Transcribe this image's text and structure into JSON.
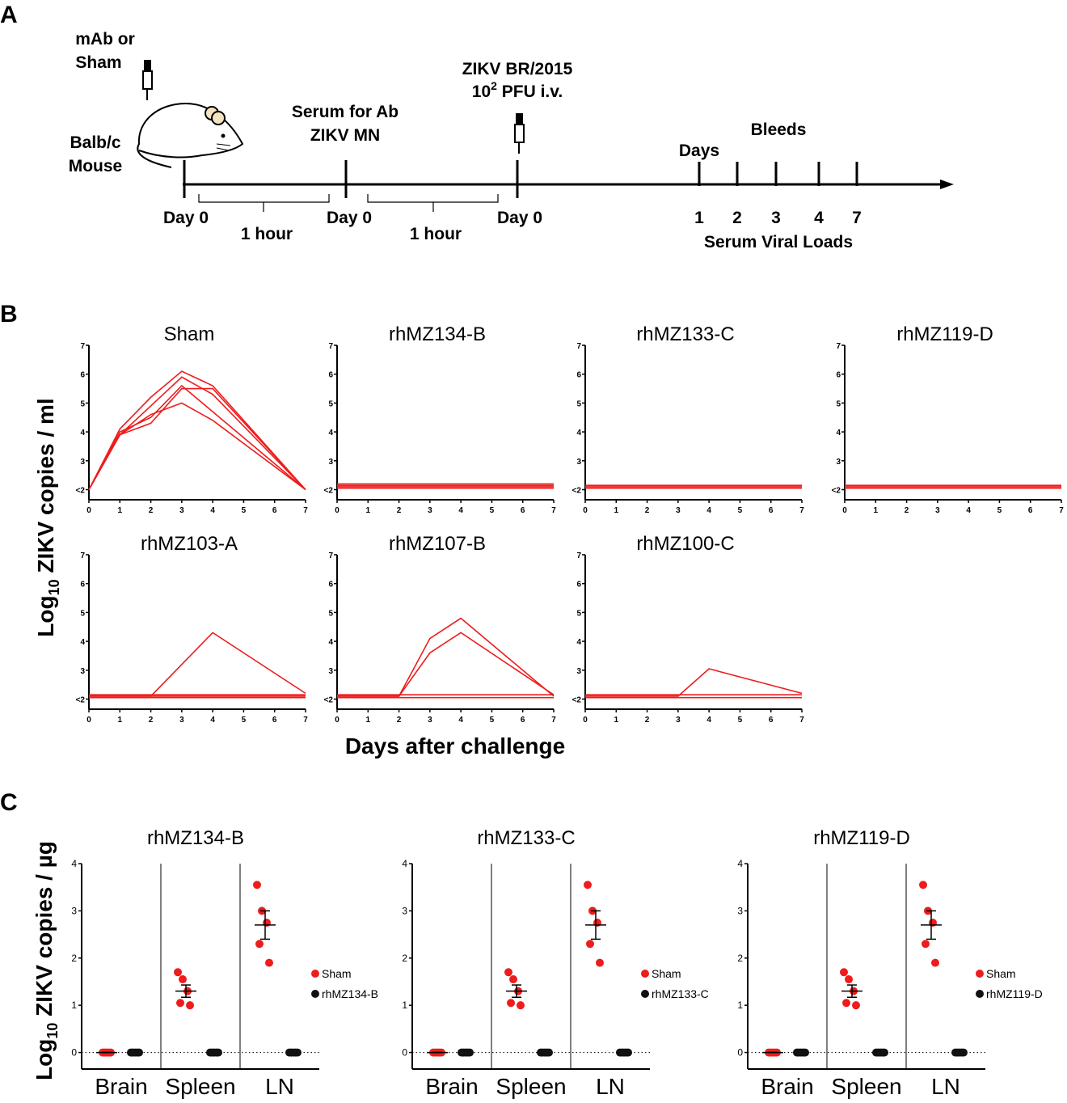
{
  "panel_labels": [
    "A",
    "B",
    "C"
  ],
  "timeline": {
    "mab": "mAb or",
    "sham": "Sham",
    "mouse1": "Balb/c",
    "mouse2": "Mouse",
    "serum1": "Serum for Ab",
    "serum2": "ZIKV MN",
    "zikv": "ZIKV BR/2015",
    "dose_base": "10",
    "dose_sup": "2",
    "dose_rest": " PFU i.v.",
    "days": "Days",
    "bleeds": "Bleeds",
    "day0": [
      "Day 0",
      "Day 0",
      "Day 0"
    ],
    "hours": [
      "1 hour",
      "1 hour"
    ],
    "bleed_days": [
      1,
      2,
      3,
      4,
      7
    ],
    "viral": "Serum Viral Loads"
  },
  "panel_b": {
    "y_label": {
      "base": "Log",
      "sub": "10",
      "rest": " ZIKV copies / ml"
    },
    "x_label": "Days after challenge"
  },
  "panel_c": {
    "y_label": {
      "base": "Log",
      "sub": "10",
      "rest": " ZIKV copies / µg"
    }
  },
  "chart_data": [
    {
      "type": "line",
      "title": "Sham",
      "color": "#ee1c1c",
      "x": [
        0,
        1,
        2,
        3,
        4,
        7
      ],
      "series": [
        {
          "values": [
            2,
            4.1,
            5.2,
            6.1,
            5.6,
            2
          ]
        },
        {
          "values": [
            2,
            3.9,
            4.9,
            5.9,
            5.3,
            2
          ]
        },
        {
          "values": [
            2,
            3.9,
            4.3,
            5.5,
            5.5,
            2
          ]
        },
        {
          "values": [
            2,
            3.9,
            4.6,
            5.0,
            4.4,
            2
          ]
        },
        {
          "values": [
            2,
            4.0,
            4.5,
            5.6,
            4.7,
            2
          ]
        }
      ],
      "xlim": [
        0,
        7
      ],
      "ylim": [
        1.65,
        7
      ],
      "xticks": [
        0,
        1,
        2,
        3,
        4,
        5,
        6,
        7
      ],
      "yticks": [
        {
          "value": 2,
          "label": "<2"
        },
        3,
        4,
        5,
        6,
        7
      ]
    },
    {
      "type": "line",
      "title": "rhMZ134-B",
      "color": "#ee1c1c",
      "x": [
        0,
        1,
        2,
        3,
        4,
        7
      ],
      "series": [
        {
          "values": [
            2.05,
            2.05,
            2.05,
            2.05,
            2.05,
            2.05
          ]
        },
        {
          "values": [
            2.1,
            2.1,
            2.1,
            2.1,
            2.1,
            2.1
          ]
        },
        {
          "values": [
            2.15,
            2.15,
            2.15,
            2.15,
            2.15,
            2.15
          ]
        },
        {
          "values": [
            2.2,
            2.2,
            2.2,
            2.2,
            2.2,
            2.2
          ]
        }
      ],
      "xlim": [
        0,
        7
      ],
      "ylim": [
        1.65,
        7
      ],
      "xticks": [
        0,
        1,
        2,
        3,
        4,
        5,
        6,
        7
      ],
      "yticks": [
        {
          "value": 2,
          "label": "<2"
        },
        3,
        4,
        5,
        6,
        7
      ]
    },
    {
      "type": "line",
      "title": "rhMZ133-C",
      "color": "#ee1c1c",
      "x": [
        0,
        1,
        2,
        3,
        4,
        7
      ],
      "series": [
        {
          "values": [
            2.05,
            2.05,
            2.05,
            2.05,
            2.05,
            2.05
          ]
        },
        {
          "values": [
            2.1,
            2.1,
            2.1,
            2.1,
            2.1,
            2.1
          ]
        },
        {
          "values": [
            2.15,
            2.15,
            2.15,
            2.15,
            2.15,
            2.15
          ]
        }
      ],
      "xlim": [
        0,
        7
      ],
      "ylim": [
        1.65,
        7
      ],
      "xticks": [
        0,
        1,
        2,
        3,
        4,
        5,
        6,
        7
      ],
      "yticks": [
        {
          "value": 2,
          "label": "<2"
        },
        3,
        4,
        5,
        6,
        7
      ]
    },
    {
      "type": "line",
      "title": "rhMZ119-D",
      "color": "#ee1c1c",
      "x": [
        0,
        1,
        2,
        3,
        4,
        7
      ],
      "series": [
        {
          "values": [
            2.05,
            2.05,
            2.05,
            2.05,
            2.05,
            2.05
          ]
        },
        {
          "values": [
            2.1,
            2.1,
            2.1,
            2.1,
            2.1,
            2.1
          ]
        },
        {
          "values": [
            2.15,
            2.15,
            2.15,
            2.15,
            2.15,
            2.15
          ]
        }
      ],
      "xlim": [
        0,
        7
      ],
      "ylim": [
        1.65,
        7
      ],
      "xticks": [
        0,
        1,
        2,
        3,
        4,
        5,
        6,
        7
      ],
      "yticks": [
        {
          "value": 2,
          "label": "<2"
        },
        3,
        4,
        5,
        6,
        7
      ]
    },
    {
      "type": "line",
      "title": "rhMZ103-A",
      "color": "#ee1c1c",
      "x": [
        0,
        1,
        2,
        3,
        4,
        7
      ],
      "series": [
        {
          "values": [
            2.1,
            2.1,
            2.1,
            3.2,
            4.3,
            2.2
          ]
        },
        {
          "values": [
            2.05,
            2.05,
            2.05,
            2.05,
            2.05,
            2.05
          ]
        },
        {
          "values": [
            2.1,
            2.1,
            2.1,
            2.1,
            2.1,
            2.1
          ]
        },
        {
          "values": [
            2.15,
            2.15,
            2.15,
            2.15,
            2.15,
            2.15
          ]
        }
      ],
      "xlim": [
        0,
        7
      ],
      "ylim": [
        1.65,
        7
      ],
      "xticks": [
        0,
        1,
        2,
        3,
        4,
        5,
        6,
        7
      ],
      "yticks": [
        {
          "value": 2,
          "label": "<2"
        },
        3,
        4,
        5,
        6,
        7
      ]
    },
    {
      "type": "line",
      "title": "rhMZ107-B",
      "color": "#ee1c1c",
      "x": [
        0,
        1,
        2,
        3,
        4,
        7
      ],
      "series": [
        {
          "values": [
            2.1,
            2.1,
            2.1,
            4.1,
            4.8,
            2.1
          ]
        },
        {
          "values": [
            2.1,
            2.1,
            2.1,
            3.6,
            4.3,
            2.15
          ]
        },
        {
          "values": [
            2.05,
            2.05,
            2.05,
            2.05,
            2.05,
            2.05
          ]
        },
        {
          "values": [
            2.15,
            2.15,
            2.15,
            2.15,
            2.15,
            2.15
          ]
        }
      ],
      "xlim": [
        0,
        7
      ],
      "ylim": [
        1.65,
        7
      ],
      "xticks": [
        0,
        1,
        2,
        3,
        4,
        5,
        6,
        7
      ],
      "yticks": [
        {
          "value": 2,
          "label": "<2"
        },
        3,
        4,
        5,
        6,
        7
      ]
    },
    {
      "type": "line",
      "title": "rhMZ100-C",
      "color": "#ee1c1c",
      "x": [
        0,
        1,
        2,
        3,
        4,
        7
      ],
      "series": [
        {
          "values": [
            2.1,
            2.1,
            2.1,
            2.1,
            3.05,
            2.2
          ]
        },
        {
          "values": [
            2.05,
            2.05,
            2.05,
            2.05,
            2.05,
            2.05
          ]
        },
        {
          "values": [
            2.15,
            2.15,
            2.15,
            2.15,
            2.15,
            2.15
          ]
        }
      ],
      "xlim": [
        0,
        7
      ],
      "ylim": [
        1.65,
        7
      ],
      "xticks": [
        0,
        1,
        2,
        3,
        4,
        5,
        6,
        7
      ],
      "yticks": [
        {
          "value": 2,
          "label": "<2"
        },
        3,
        4,
        5,
        6,
        7
      ]
    },
    {
      "type": "strip",
      "title": "rhMZ134-B",
      "categories": [
        "Brain",
        "Spleen",
        "LN"
      ],
      "series": [
        {
          "name": "Sham",
          "color": "#ee1c1c",
          "values": [
            [
              0,
              0,
              0,
              0,
              0
            ],
            [
              1.7,
              1.55,
              1.3,
              1.05,
              1.0
            ],
            [
              3.55,
              3.0,
              2.75,
              2.3,
              1.9
            ]
          ],
          "means": [
            0,
            1.3,
            2.7
          ],
          "errors": [
            0,
            0.13,
            0.3
          ]
        },
        {
          "name": "rhMZ134-B",
          "color": "#111111",
          "values": [
            [
              0,
              0,
              0,
              0,
              0
            ],
            [
              0,
              0,
              0,
              0,
              0
            ],
            [
              0,
              0,
              0,
              0,
              0
            ]
          ]
        }
      ],
      "ylim": [
        -0.35,
        4
      ],
      "yticks": [
        0,
        1,
        2,
        3,
        4
      ]
    },
    {
      "type": "strip",
      "title": "rhMZ133-C",
      "categories": [
        "Brain",
        "Spleen",
        "LN"
      ],
      "series": [
        {
          "name": "Sham",
          "color": "#ee1c1c",
          "values": [
            [
              0,
              0,
              0,
              0,
              0
            ],
            [
              1.7,
              1.55,
              1.3,
              1.05,
              1.0
            ],
            [
              3.55,
              3.0,
              2.75,
              2.3,
              1.9
            ]
          ],
          "means": [
            0,
            1.3,
            2.7
          ],
          "errors": [
            0,
            0.13,
            0.3
          ]
        },
        {
          "name": "rhMZ133-C",
          "color": "#111111",
          "values": [
            [
              0,
              0,
              0,
              0,
              0
            ],
            [
              0,
              0,
              0,
              0,
              0
            ],
            [
              0,
              0,
              0,
              0,
              0
            ]
          ]
        }
      ],
      "ylim": [
        -0.35,
        4
      ],
      "yticks": [
        0,
        1,
        2,
        3,
        4
      ]
    },
    {
      "type": "strip",
      "title": "rhMZ119-D",
      "categories": [
        "Brain",
        "Spleen",
        "LN"
      ],
      "series": [
        {
          "name": "Sham",
          "color": "#ee1c1c",
          "values": [
            [
              0,
              0,
              0,
              0,
              0
            ],
            [
              1.7,
              1.55,
              1.3,
              1.05,
              1.0
            ],
            [
              3.55,
              3.0,
              2.75,
              2.3,
              1.9
            ]
          ],
          "means": [
            0,
            1.3,
            2.7
          ],
          "errors": [
            0,
            0.13,
            0.3
          ]
        },
        {
          "name": "rhMZ119-D",
          "color": "#111111",
          "values": [
            [
              0,
              0,
              0,
              0,
              0
            ],
            [
              0,
              0,
              0,
              0,
              0
            ],
            [
              0,
              0,
              0,
              0,
              0
            ]
          ]
        }
      ],
      "ylim": [
        -0.35,
        4
      ],
      "yticks": [
        0,
        1,
        2,
        3,
        4
      ]
    }
  ]
}
